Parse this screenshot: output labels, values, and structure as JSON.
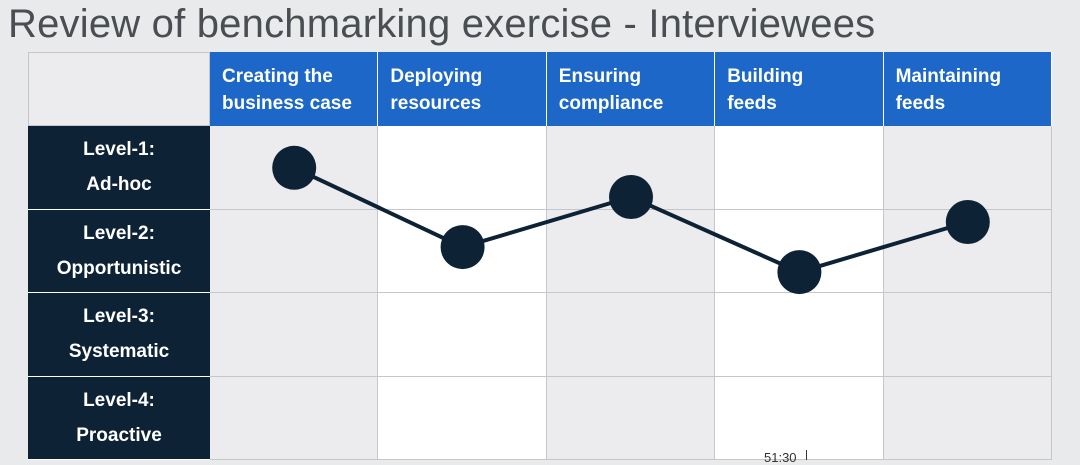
{
  "title": "Review of benchmarking exercise - Interviewees",
  "columns": [
    {
      "label": "Creating the\nbusiness case"
    },
    {
      "label": "Deploying\nresources"
    },
    {
      "label": "Ensuring\ncompliance"
    },
    {
      "label": "Building\nfeeds"
    },
    {
      "label": "Maintaining\nfeeds"
    }
  ],
  "rows": [
    {
      "label": "Level-1:\nAd-hoc"
    },
    {
      "label": "Level-2:\nOpportunistic"
    },
    {
      "label": "Level-3:\nSystematic"
    },
    {
      "label": "Level-4:\nProactive"
    }
  ],
  "chart_data": {
    "type": "line",
    "categories": [
      "Creating the business case",
      "Deploying resources",
      "Ensuring compliance",
      "Building feeds",
      "Maintaining feeds"
    ],
    "levels": [
      "Level-1: Ad-hoc",
      "Level-2: Opportunistic",
      "Level-3: Systematic",
      "Level-4: Proactive"
    ],
    "values": [
      1.0,
      1.95,
      1.35,
      2.25,
      1.65
    ],
    "ylim": [
      0.5,
      4.5
    ],
    "marker_color": "#0e2235",
    "line_color": "#0e2235"
  },
  "colors": {
    "header_blue": "#1c67c8",
    "row_header_navy": "#0e2235"
  },
  "timestamp": "51:30"
}
